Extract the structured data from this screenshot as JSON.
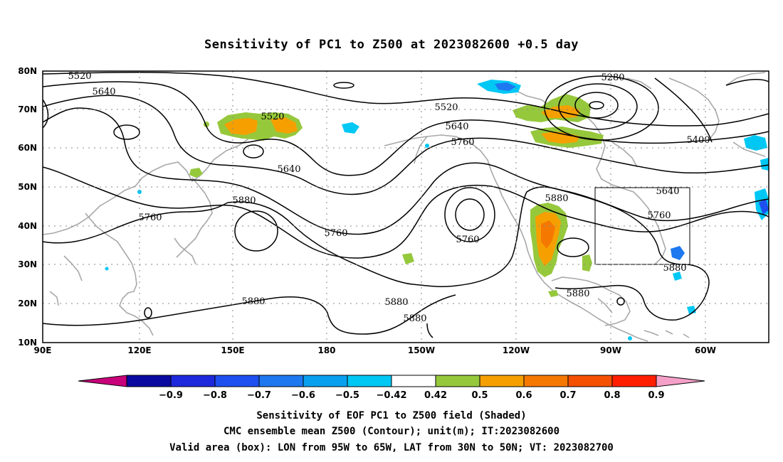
{
  "title": "Sensitivity of PC1 to Z500 at 2023082600 +0.5 day",
  "lat_labels": [
    "80N",
    "70N",
    "60N",
    "50N",
    "40N",
    "30N",
    "20N",
    "10N"
  ],
  "lon_labels": [
    "90E",
    "120E",
    "150E",
    "180",
    "150W",
    "120W",
    "90W",
    "60W"
  ],
  "contour_labels": [
    {
      "text": "5520"
    },
    {
      "text": "5640"
    },
    {
      "text": "5520"
    },
    {
      "text": "5640"
    },
    {
      "text": "5760"
    },
    {
      "text": "5880"
    },
    {
      "text": "5760"
    },
    {
      "text": "5880"
    },
    {
      "text": "5880"
    },
    {
      "text": "5520"
    },
    {
      "text": "5640"
    },
    {
      "text": "5760"
    },
    {
      "text": "5760"
    },
    {
      "text": "5880"
    },
    {
      "text": "5280"
    },
    {
      "text": "5400"
    },
    {
      "text": "5640"
    },
    {
      "text": "5760"
    },
    {
      "text": "5880"
    },
    {
      "text": "5880"
    }
  ],
  "colorbar": {
    "colors": [
      "#c8007a",
      "#0a0aa0",
      "#1e28dc",
      "#1e50f0",
      "#1e78f0",
      "#0aa0f0",
      "#00c8f5",
      "#ffffff",
      "#96c83c",
      "#f5a000",
      "#f57800",
      "#f55000",
      "#ff1e00",
      "#f5a0c8"
    ],
    "ticks": [
      "-0.9",
      "-0.8",
      "-0.7",
      "-0.6",
      "-0.5",
      "-0.42",
      "0.42",
      "0.5",
      "0.6",
      "0.7",
      "0.8",
      "0.9"
    ]
  },
  "footer": {
    "line1": "Sensitivity of EOF PC1 to Z500 field (Shaded)",
    "line2": "CMC ensemble mean Z500 (Contour); unit(m); IT:2023082600",
    "line3": "Valid area (box): LON from 95W to 65W, LAT from 30N to 50N; VT: 2023082700"
  },
  "valid_box": {
    "lon_west": -95,
    "lon_east": -65,
    "lat_south": 30,
    "lat_north": 50
  },
  "shading_colors": {
    "positive_low": "#96c83c",
    "positive_mid": "#f5a000",
    "positive_high": "#f57800",
    "negative_low": "#00c8f5",
    "negative_mid": "#1e78f0",
    "negative_high": "#1e28dc"
  }
}
